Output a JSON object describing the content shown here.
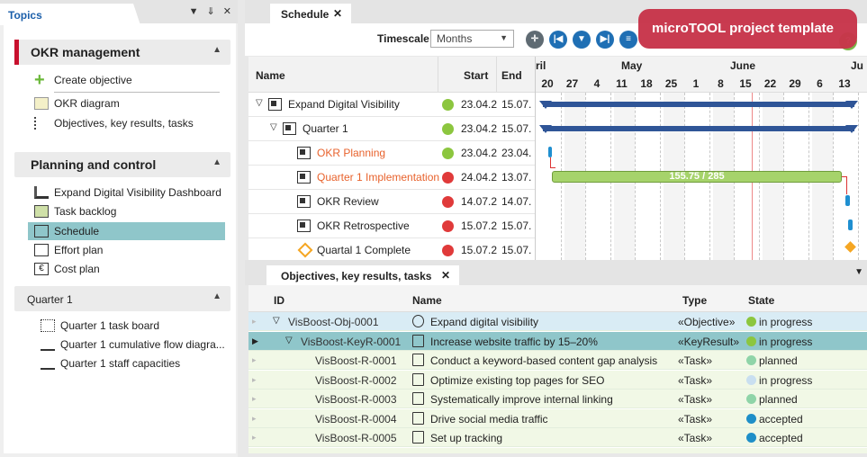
{
  "left_panel": {
    "tab": "Topics",
    "controls": "▼ ⇓ ✕",
    "sections": [
      {
        "title": "OKR management",
        "items": [
          {
            "label": "Create objective"
          },
          {
            "label": "OKR diagram"
          },
          {
            "label": "Objectives, key results, tasks"
          }
        ]
      },
      {
        "title": "Planning and control",
        "items": [
          {
            "label": "Expand Digital Visibility Dashboard"
          },
          {
            "label": "Task backlog"
          },
          {
            "label": "Schedule",
            "selected": true
          },
          {
            "label": "Effort plan"
          },
          {
            "label": "Cost plan"
          }
        ]
      },
      {
        "title": "Quarter 1",
        "items": [
          {
            "label": "Quarter 1 task board"
          },
          {
            "label": "Quarter 1 cumulative flow diagra..."
          },
          {
            "label": "Quarter 1 staff capacities"
          }
        ]
      }
    ]
  },
  "schedule": {
    "tab": "Schedule",
    "timescale_label": "Timescale",
    "timescale_value": "Months",
    "banner": "microTOOL project template",
    "columns": {
      "name": "Name",
      "start": "Start",
      "end": "End"
    },
    "months": [
      "ril",
      "May",
      "June",
      "Ju"
    ],
    "weeks": [
      "20",
      "27",
      "4",
      "11",
      "18",
      "25",
      "1",
      "8",
      "15",
      "22",
      "29",
      "6",
      "13"
    ],
    "rows": [
      {
        "name": "Expand Digital Visibility",
        "start": "23.04.2",
        "end": "15.07.",
        "status": "#8cc63f",
        "expand": "▽"
      },
      {
        "name": "Quarter 1",
        "start": "23.04.2",
        "end": "15.07.",
        "status": "#8cc63f",
        "expand": "▽"
      },
      {
        "name": "OKR Planning",
        "start": "23.04.2",
        "end": "23.04.",
        "status": "#8cc63f",
        "highlight": true
      },
      {
        "name": "Quarter 1 Implementation",
        "start": "24.04.2",
        "end": "13.07.",
        "status": "#e03a3a",
        "highlight": true
      },
      {
        "name": "OKR Review",
        "start": "14.07.2",
        "end": "14.07.",
        "status": "#e03a3a"
      },
      {
        "name": "OKR Retrospective",
        "start": "15.07.2",
        "end": "15.07.",
        "status": "#e03a3a"
      },
      {
        "name": "Quartal 1 Complete",
        "start": "15.07.2",
        "end": "15.07.",
        "status": "#e03a3a",
        "milestone": true
      }
    ],
    "bar_label": "155.75 / 285"
  },
  "objectives": {
    "tab": "Objectives, key results, tasks",
    "columns": {
      "id": "ID",
      "name": "Name",
      "type": "Type",
      "state": "State"
    },
    "rows": [
      {
        "id": "VisBoost-Obj-0001",
        "name": "Expand digital visibility",
        "type": "«Objective»",
        "state": "in progress",
        "dot": "#8cc63f",
        "bg": "#d9ecf5",
        "expand": "▽"
      },
      {
        "id": "VisBoost-KeyR-0001",
        "name": "Increase website traffic by 15–20%",
        "type": "«KeyResult»",
        "state": "in progress",
        "dot": "#8cc63f",
        "bg": "#8fc6ca",
        "expand": "▽",
        "pointer": "▶"
      },
      {
        "id": "VisBoost-R-0001",
        "name": "Conduct a keyword-based content gap analysis",
        "type": "«Task»",
        "state": "planned",
        "dot": "#8fd4a8",
        "bg": "#f1f8e6"
      },
      {
        "id": "VisBoost-R-0002",
        "name": "Optimize existing top pages for SEO",
        "type": "«Task»",
        "state": "in progress",
        "dot": "#c9dff0",
        "bg": "#f1f8e6"
      },
      {
        "id": "VisBoost-R-0003",
        "name": "Systematically improve internal linking",
        "type": "«Task»",
        "state": "planned",
        "dot": "#8fd4a8",
        "bg": "#f1f8e6"
      },
      {
        "id": "VisBoost-R-0004",
        "name": "Drive social media traffic",
        "type": "«Task»",
        "state": "accepted",
        "dot": "#1e8fc8",
        "bg": "#f1f8e6"
      },
      {
        "id": "VisBoost-R-0005",
        "name": "Set up tracking",
        "type": "«Task»",
        "state": "accepted",
        "dot": "#1e8fc8",
        "bg": "#f1f8e6"
      }
    ]
  }
}
